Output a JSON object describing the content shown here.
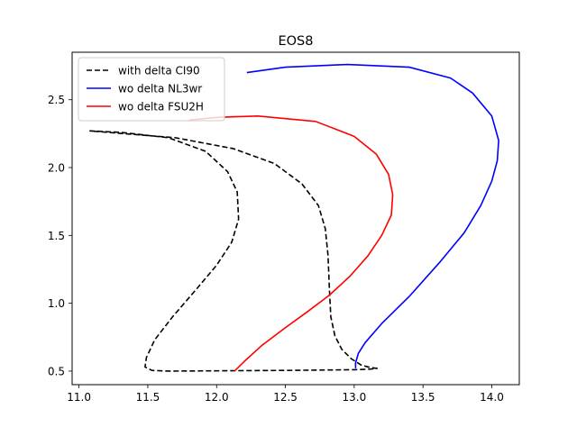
{
  "chart_data": {
    "type": "line",
    "title": "EOS8",
    "xlabel": "",
    "ylabel": "",
    "xlim": [
      10.95,
      14.2
    ],
    "ylim": [
      0.4,
      2.85
    ],
    "xticks": [
      11.0,
      11.5,
      12.0,
      12.5,
      13.0,
      13.5,
      14.0
    ],
    "xtick_labels": [
      "11.0",
      "11.5",
      "12.0",
      "12.5",
      "13.0",
      "13.5",
      "14.0"
    ],
    "yticks": [
      0.5,
      1.0,
      1.5,
      2.0,
      2.5
    ],
    "ytick_labels": [
      "0.5",
      "1.0",
      "1.5",
      "2.0",
      "2.5"
    ],
    "grid": false,
    "legend_position": "top-left",
    "series": [
      {
        "name": "with delta CI90",
        "color": "#000000",
        "dash": "dashed",
        "points": [
          [
            13.17,
            0.52
          ],
          [
            13.12,
            0.525
          ],
          [
            13.05,
            0.545
          ],
          [
            12.98,
            0.59
          ],
          [
            12.91,
            0.66
          ],
          [
            12.86,
            0.76
          ],
          [
            12.83,
            0.9
          ],
          [
            12.82,
            1.1
          ],
          [
            12.81,
            1.35
          ],
          [
            12.79,
            1.55
          ],
          [
            12.74,
            1.72
          ],
          [
            12.62,
            1.88
          ],
          [
            12.42,
            2.03
          ],
          [
            12.12,
            2.14
          ],
          [
            11.7,
            2.22
          ],
          [
            11.08,
            2.27
          ],
          [
            11.3,
            2.26
          ],
          [
            11.65,
            2.22
          ],
          [
            11.92,
            2.12
          ],
          [
            12.08,
            1.97
          ],
          [
            12.15,
            1.82
          ],
          [
            12.16,
            1.62
          ],
          [
            12.11,
            1.45
          ],
          [
            12.0,
            1.28
          ],
          [
            11.85,
            1.1
          ],
          [
            11.68,
            0.9
          ],
          [
            11.55,
            0.73
          ],
          [
            11.49,
            0.6
          ],
          [
            11.48,
            0.53
          ],
          [
            11.53,
            0.505
          ],
          [
            11.65,
            0.5
          ],
          [
            12.5,
            0.505
          ],
          [
            13.0,
            0.51
          ],
          [
            13.12,
            0.515
          ],
          [
            13.17,
            0.52
          ]
        ]
      },
      {
        "name": "wo delta NL3wr",
        "color": "#0000ff",
        "dash": "solid",
        "points": [
          [
            13.01,
            0.52
          ],
          [
            13.01,
            0.56
          ],
          [
            13.03,
            0.63
          ],
          [
            13.08,
            0.71
          ],
          [
            13.2,
            0.85
          ],
          [
            13.4,
            1.05
          ],
          [
            13.62,
            1.3
          ],
          [
            13.8,
            1.52
          ],
          [
            13.92,
            1.72
          ],
          [
            14.0,
            1.9
          ],
          [
            14.04,
            2.05
          ],
          [
            14.05,
            2.2
          ],
          [
            14.0,
            2.38
          ],
          [
            13.86,
            2.55
          ],
          [
            13.7,
            2.66
          ],
          [
            13.4,
            2.74
          ],
          [
            12.95,
            2.76
          ],
          [
            12.5,
            2.74
          ],
          [
            12.22,
            2.7
          ]
        ]
      },
      {
        "name": "wo delta FSU2H",
        "color": "#ff0000",
        "dash": "solid",
        "points": [
          [
            12.13,
            0.5
          ],
          [
            12.2,
            0.57
          ],
          [
            12.33,
            0.69
          ],
          [
            12.5,
            0.82
          ],
          [
            12.65,
            0.93
          ],
          [
            12.82,
            1.06
          ],
          [
            12.97,
            1.2
          ],
          [
            13.1,
            1.35
          ],
          [
            13.2,
            1.5
          ],
          [
            13.27,
            1.65
          ],
          [
            13.28,
            1.8
          ],
          [
            13.25,
            1.95
          ],
          [
            13.16,
            2.1
          ],
          [
            13.0,
            2.23
          ],
          [
            12.72,
            2.34
          ],
          [
            12.3,
            2.38
          ],
          [
            12.0,
            2.37
          ],
          [
            11.8,
            2.35
          ]
        ]
      }
    ]
  }
}
